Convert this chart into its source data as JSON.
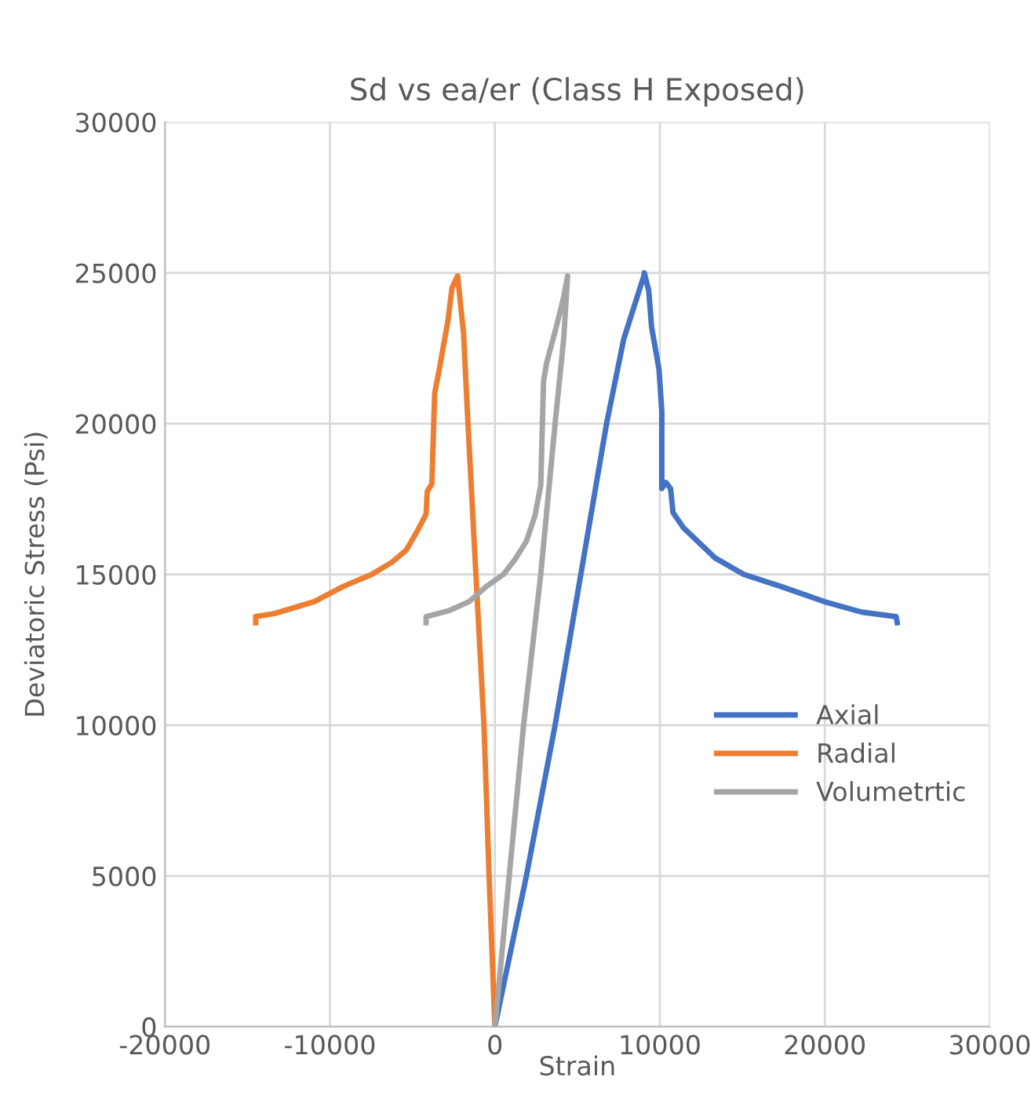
{
  "chart_data": {
    "type": "line",
    "title": "Sd vs ea/er (Class H Exposed)",
    "xlabel": "Strain",
    "ylabel": "Deviatoric Stress (Psi)",
    "xlim": [
      -20000,
      30000
    ],
    "xticks": [
      -20000,
      -10000,
      0,
      10000,
      20000,
      30000
    ],
    "ylim": [
      0,
      30000
    ],
    "yticks": [
      0,
      5000,
      10000,
      15000,
      20000,
      25000,
      30000
    ],
    "grid": true,
    "legend": "right",
    "marker": "none",
    "line_style": "solid",
    "series": [
      {
        "name": "Axial",
        "color": "#4472c4",
        "x": [
          0,
          1910,
          3650,
          5210,
          6770,
          7810,
          9030,
          9060,
          9330,
          9500,
          9950,
          10120,
          10120,
          10370,
          10650,
          10800,
          11430,
          13340,
          15090,
          17350,
          19960,
          22230,
          24320,
          24390
        ],
        "values": [
          0,
          5000,
          10000,
          15000,
          20000,
          22800,
          24900,
          25000,
          24400,
          23200,
          21800,
          20400,
          17850,
          18050,
          17850,
          17050,
          16550,
          15550,
          15000,
          14600,
          14100,
          13750,
          13600,
          13400
        ]
      },
      {
        "name": "Radial",
        "color": "#ed7d31",
        "x": [
          0,
          -350,
          -660,
          -1150,
          -1630,
          -1900,
          -2260,
          -2600,
          -2850,
          -3370,
          -3650,
          -3820,
          -4100,
          -4170,
          -4690,
          -5380,
          -6250,
          -7470,
          -9200,
          -10940,
          -13370,
          -14500,
          -14500
        ],
        "values": [
          0,
          5000,
          10000,
          15000,
          20000,
          23000,
          24900,
          24500,
          23400,
          21800,
          21000,
          18000,
          17750,
          17000,
          16450,
          15800,
          15400,
          15000,
          14600,
          14100,
          13700,
          13600,
          13400
        ]
      },
      {
        "name": "Volumetrtic",
        "color": "#a5a5a5",
        "x": [
          0,
          870,
          1740,
          2780,
          3650,
          4170,
          4410,
          4170,
          3720,
          3130,
          2950,
          2780,
          2430,
          1910,
          1220,
          520,
          -520,
          -1560,
          -2780,
          -4170,
          -4170
        ],
        "values": [
          0,
          5000,
          10000,
          15000,
          20000,
          22800,
          24900,
          24200,
          23200,
          22000,
          21400,
          17950,
          16950,
          16100,
          15500,
          15000,
          14600,
          14100,
          13800,
          13600,
          13400
        ]
      }
    ]
  }
}
